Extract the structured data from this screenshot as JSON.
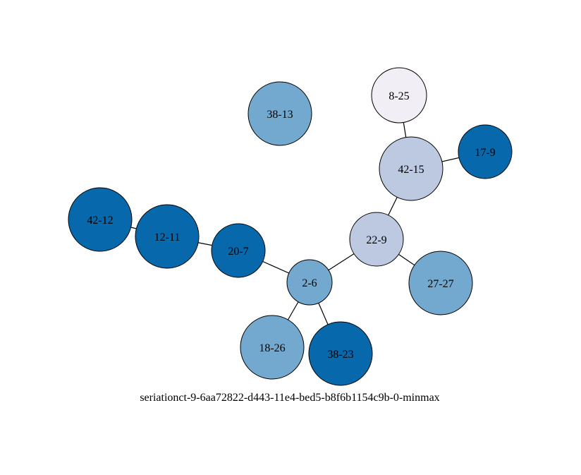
{
  "caption": "seriationct-9-6aa72822-d443-11e4-bed5-b8f6b1154c9b-0-minmax",
  "colors": {
    "dark": "#0868ac",
    "medium": "#74a9cf",
    "light": "#bdc9e1",
    "pale": "#f1eef6"
  },
  "nodes": [
    {
      "id": "38-13",
      "label": "38-13",
      "shade": "medium"
    },
    {
      "id": "8-25",
      "label": "8-25",
      "shade": "pale"
    },
    {
      "id": "42-15",
      "label": "42-15",
      "shade": "light"
    },
    {
      "id": "17-9",
      "label": "17-9",
      "shade": "dark"
    },
    {
      "id": "42-12",
      "label": "42-12",
      "shade": "dark"
    },
    {
      "id": "12-11",
      "label": "12-11",
      "shade": "dark"
    },
    {
      "id": "20-7",
      "label": "20-7",
      "shade": "dark"
    },
    {
      "id": "22-9",
      "label": "22-9",
      "shade": "light"
    },
    {
      "id": "2-6",
      "label": "2-6",
      "shade": "medium"
    },
    {
      "id": "27-27",
      "label": "27-27",
      "shade": "medium"
    },
    {
      "id": "18-26",
      "label": "18-26",
      "shade": "medium"
    },
    {
      "id": "38-23",
      "label": "38-23",
      "shade": "dark"
    }
  ],
  "edges": [
    {
      "from": "8-25",
      "to": "42-15"
    },
    {
      "from": "42-15",
      "to": "17-9"
    },
    {
      "from": "42-15",
      "to": "22-9"
    },
    {
      "from": "42-12",
      "to": "12-11"
    },
    {
      "from": "12-11",
      "to": "20-7"
    },
    {
      "from": "20-7",
      "to": "2-6"
    },
    {
      "from": "2-6",
      "to": "22-9"
    },
    {
      "from": "22-9",
      "to": "27-27"
    },
    {
      "from": "2-6",
      "to": "18-26"
    },
    {
      "from": "2-6",
      "to": "38-23"
    }
  ]
}
